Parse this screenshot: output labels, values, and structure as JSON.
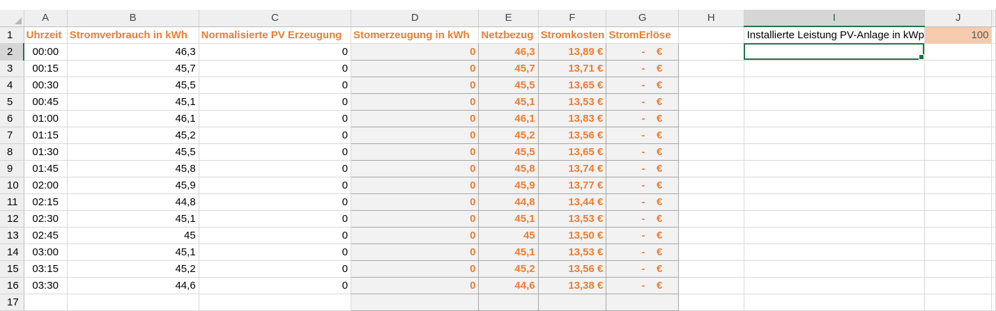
{
  "columns": [
    "A",
    "B",
    "C",
    "D",
    "E",
    "F",
    "G",
    "H",
    "I",
    "J"
  ],
  "row_numbers": [
    "1",
    "2",
    "3",
    "4",
    "5",
    "6",
    "7",
    "8",
    "9",
    "10",
    "11",
    "12",
    "13",
    "14",
    "15",
    "16",
    "17"
  ],
  "headers": {
    "A": "Uhrzeit",
    "B": "Stromverbrauch in kWh",
    "C": "Normalisierte PV Erzeugung",
    "D": "Stomerzeugung in kWh",
    "E": "Netzbezug",
    "F": "Stromkosten",
    "G": "StromErlöse"
  },
  "param": {
    "label": "Installierte Leistung PV-Anlage in kWp",
    "value": "100"
  },
  "erloes_dash": "-",
  "erloes_currency": "€",
  "rows": [
    {
      "time": "00:00",
      "verbrauch": "46,3",
      "pv": "0",
      "erzeugung": "0",
      "netzbezug": "46,3",
      "kosten": "13,89 €"
    },
    {
      "time": "00:15",
      "verbrauch": "45,7",
      "pv": "0",
      "erzeugung": "0",
      "netzbezug": "45,7",
      "kosten": "13,71 €"
    },
    {
      "time": "00:30",
      "verbrauch": "45,5",
      "pv": "0",
      "erzeugung": "0",
      "netzbezug": "45,5",
      "kosten": "13,65 €"
    },
    {
      "time": "00:45",
      "verbrauch": "45,1",
      "pv": "0",
      "erzeugung": "0",
      "netzbezug": "45,1",
      "kosten": "13,53 €"
    },
    {
      "time": "01:00",
      "verbrauch": "46,1",
      "pv": "0",
      "erzeugung": "0",
      "netzbezug": "46,1",
      "kosten": "13,83 €"
    },
    {
      "time": "01:15",
      "verbrauch": "45,2",
      "pv": "0",
      "erzeugung": "0",
      "netzbezug": "45,2",
      "kosten": "13,56 €"
    },
    {
      "time": "01:30",
      "verbrauch": "45,5",
      "pv": "0",
      "erzeugung": "0",
      "netzbezug": "45,5",
      "kosten": "13,65 €"
    },
    {
      "time": "01:45",
      "verbrauch": "45,8",
      "pv": "0",
      "erzeugung": "0",
      "netzbezug": "45,8",
      "kosten": "13,74 €"
    },
    {
      "time": "02:00",
      "verbrauch": "45,9",
      "pv": "0",
      "erzeugung": "0",
      "netzbezug": "45,9",
      "kosten": "13,77 €"
    },
    {
      "time": "02:15",
      "verbrauch": "44,8",
      "pv": "0",
      "erzeugung": "0",
      "netzbezug": "44,8",
      "kosten": "13,44 €"
    },
    {
      "time": "02:30",
      "verbrauch": "45,1",
      "pv": "0",
      "erzeugung": "0",
      "netzbezug": "45,1",
      "kosten": "13,53 €"
    },
    {
      "time": "02:45",
      "verbrauch": "45",
      "pv": "0",
      "erzeugung": "0",
      "netzbezug": "45",
      "kosten": "13,50 €"
    },
    {
      "time": "03:00",
      "verbrauch": "45,1",
      "pv": "0",
      "erzeugung": "0",
      "netzbezug": "45,1",
      "kosten": "13,53 €"
    },
    {
      "time": "03:15",
      "verbrauch": "45,2",
      "pv": "0",
      "erzeugung": "0",
      "netzbezug": "45,2",
      "kosten": "13,56 €"
    },
    {
      "time": "03:30",
      "verbrauch": "44,6",
      "pv": "0",
      "erzeugung": "0",
      "netzbezug": "44,6",
      "kosten": "13,38 €"
    }
  ],
  "selected_cell": "I2",
  "colors": {
    "accent_orange": "#ed7d31",
    "param_fill": "#f8cbad",
    "selection_green": "#217346",
    "shaded_fill": "#f2f2f2"
  }
}
